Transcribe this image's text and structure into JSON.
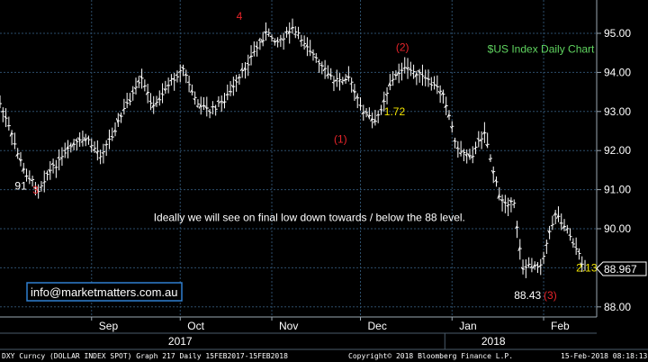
{
  "chart_data": {
    "type": "ohlc",
    "title": "$US Index Daily Chart",
    "xlabel": "",
    "ylabel": "",
    "ylim": [
      87.8,
      95.6
    ],
    "y_ticks": [
      "95.00",
      "94.00",
      "93.00",
      "92.00",
      "91.00",
      "90.00",
      "89.00",
      "88.00"
    ],
    "y_tick_values": [
      95,
      94,
      93,
      92,
      91,
      90,
      89,
      88
    ],
    "x_ticks": [
      "Sep",
      "Oct",
      "Nov",
      "Dec",
      "Jan",
      "Feb"
    ],
    "x_tick_dates": [
      "2017-09-01",
      "2017-10-01",
      "2017-11-01",
      "2017-12-01",
      "2018-01-01",
      "2018-02-01"
    ],
    "year_labels": [
      "2017",
      "2018"
    ],
    "year_label_dates": [
      "2017-10-01",
      "2018-01-15"
    ],
    "grid": true,
    "price_series": {
      "name": "DXY Curncy",
      "dates": [
        "2017-08-01",
        "2017-08-04",
        "2017-08-09",
        "2017-08-14",
        "2017-08-17",
        "2017-08-22",
        "2017-08-25",
        "2017-08-30",
        "2017-09-04",
        "2017-09-08",
        "2017-09-13",
        "2017-09-18",
        "2017-09-22",
        "2017-09-27",
        "2017-10-02",
        "2017-10-06",
        "2017-10-11",
        "2017-10-16",
        "2017-10-20",
        "2017-10-25",
        "2017-10-30",
        "2017-11-03",
        "2017-11-08",
        "2017-11-13",
        "2017-11-17",
        "2017-11-22",
        "2017-11-27",
        "2017-12-01",
        "2017-12-06",
        "2017-12-11",
        "2017-12-15",
        "2017-12-20",
        "2017-12-25",
        "2017-12-29",
        "2018-01-03",
        "2018-01-08",
        "2018-01-12",
        "2018-01-17",
        "2018-01-22",
        "2018-01-25",
        "2018-01-31",
        "2018-02-05",
        "2018-02-09",
        "2018-02-15"
      ],
      "values": [
        93.2,
        92.6,
        91.5,
        91.0,
        91.4,
        91.8,
        92.1,
        92.3,
        91.9,
        92.4,
        93.2,
        93.8,
        93.1,
        93.7,
        94.1,
        93.3,
        93.0,
        93.3,
        93.7,
        94.4,
        95.0,
        94.8,
        95.1,
        94.7,
        94.2,
        93.8,
        93.9,
        93.1,
        92.7,
        93.7,
        94.1,
        94.0,
        93.7,
        93.5,
        92.0,
        91.9,
        92.5,
        90.8,
        90.6,
        89.0,
        89.1,
        90.4,
        90.0,
        88.97
      ]
    },
    "annotations": [
      {
        "text": "4",
        "color": "#e8242a",
        "date": "2017-10-20",
        "price": 95.35
      },
      {
        "text": "(2)",
        "color": "#e8242a",
        "date": "2017-12-13",
        "price": 94.55
      },
      {
        "text": "1.72",
        "color": "#f2e400",
        "date": "2017-12-09",
        "price": 92.9
      },
      {
        "text": "(1)",
        "color": "#e8242a",
        "date": "2017-11-22",
        "price": 92.2
      },
      {
        "text": "91",
        "color": "#ffffff",
        "date": "2017-08-06",
        "price": 91.0
      },
      {
        "text": "3",
        "color": "#e8242a",
        "date": "2017-08-12",
        "price": 90.9
      },
      {
        "text": "Ideally we will see on final low down towards / below the 88 level.",
        "color": "#ffffff",
        "date": "2017-09-22",
        "price": 90.2
      },
      {
        "text": "88.43",
        "color": "#ffffff",
        "date": "2018-01-22",
        "price": 88.2
      },
      {
        "text": "(3)",
        "color": "#e8242a",
        "date": "2018-02-01",
        "price": 88.2
      },
      {
        "text": "2.13",
        "color": "#f2e400",
        "date": "2018-02-12",
        "price": 88.9
      },
      {
        "text": "$US Index Daily Chart",
        "color": "#5fd35f",
        "date": "2018-01-13",
        "price": 94.5
      }
    ],
    "last_value_label": "88.967",
    "contact_box": "info@marketmatters.com.au"
  },
  "footer": {
    "left": "DXY Curncy (DOLLAR INDEX SPOT) Graph 217  Daily 15FEB2017-15FEB2018",
    "middle": "Copyright© 2018 Bloomberg Finance L.P.",
    "right": "15-Feb-2018 08:18:13"
  },
  "colors": {
    "background": "#000000",
    "grid": "#2d4e6b",
    "price_line": "#ffffff",
    "axis_text": "#ffffff",
    "divider": "#4a5b6a",
    "contact_box_border": "#2f7fd0",
    "contact_box_text": "#ffffff"
  }
}
